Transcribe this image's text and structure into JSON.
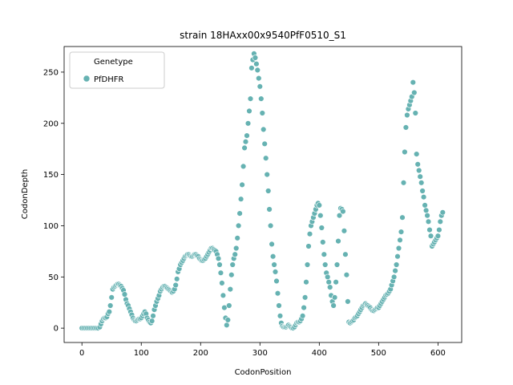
{
  "chart_data": {
    "type": "scatter",
    "title": "strain 18HAxx00x9540PfF0510_S1",
    "xlabel": "CodonPosition",
    "ylabel": "CodonDepth",
    "xlim": [
      -30,
      640
    ],
    "ylim": [
      -14,
      275
    ],
    "xticks": [
      0,
      100,
      200,
      300,
      400,
      500,
      600
    ],
    "yticks": [
      0,
      50,
      100,
      150,
      200,
      250
    ],
    "grid": false,
    "legend": {
      "title": "Genetype",
      "placement": "top-left",
      "entries": [
        "PfDHFR"
      ]
    },
    "series": [
      {
        "name": "PfDHFR",
        "color": "#66b2b2",
        "points": [
          [
            0,
            0
          ],
          [
            3,
            0
          ],
          [
            6,
            0
          ],
          [
            9,
            0
          ],
          [
            12,
            0
          ],
          [
            15,
            0
          ],
          [
            18,
            0
          ],
          [
            21,
            0
          ],
          [
            24,
            0
          ],
          [
            27,
            0
          ],
          [
            30,
            1
          ],
          [
            32,
            4
          ],
          [
            34,
            7
          ],
          [
            36,
            9
          ],
          [
            38,
            10
          ],
          [
            40,
            10
          ],
          [
            42,
            11
          ],
          [
            44,
            14
          ],
          [
            46,
            16
          ],
          [
            48,
            22
          ],
          [
            50,
            30
          ],
          [
            52,
            38
          ],
          [
            54,
            40
          ],
          [
            56,
            41
          ],
          [
            58,
            42
          ],
          [
            60,
            43
          ],
          [
            62,
            43
          ],
          [
            64,
            42
          ],
          [
            66,
            41
          ],
          [
            68,
            39
          ],
          [
            70,
            37
          ],
          [
            72,
            33
          ],
          [
            74,
            28
          ],
          [
            76,
            24
          ],
          [
            78,
            22
          ],
          [
            80,
            19
          ],
          [
            82,
            16
          ],
          [
            84,
            13
          ],
          [
            86,
            10
          ],
          [
            88,
            8
          ],
          [
            90,
            7
          ],
          [
            92,
            7
          ],
          [
            94,
            8
          ],
          [
            96,
            9
          ],
          [
            98,
            9
          ],
          [
            100,
            10
          ],
          [
            102,
            12
          ],
          [
            104,
            14
          ],
          [
            106,
            16
          ],
          [
            108,
            14
          ],
          [
            110,
            10
          ],
          [
            112,
            8
          ],
          [
            114,
            6
          ],
          [
            116,
            5
          ],
          [
            118,
            7
          ],
          [
            120,
            12
          ],
          [
            122,
            18
          ],
          [
            124,
            22
          ],
          [
            126,
            26
          ],
          [
            128,
            29
          ],
          [
            130,
            32
          ],
          [
            132,
            36
          ],
          [
            134,
            38
          ],
          [
            136,
            40
          ],
          [
            138,
            41
          ],
          [
            140,
            41
          ],
          [
            142,
            40
          ],
          [
            144,
            39
          ],
          [
            146,
            38
          ],
          [
            148,
            37
          ],
          [
            150,
            36
          ],
          [
            152,
            35
          ],
          [
            154,
            36
          ],
          [
            156,
            38
          ],
          [
            158,
            42
          ],
          [
            160,
            48
          ],
          [
            162,
            55
          ],
          [
            164,
            58
          ],
          [
            166,
            62
          ],
          [
            168,
            64
          ],
          [
            170,
            66
          ],
          [
            172,
            68
          ],
          [
            174,
            70
          ],
          [
            176,
            71
          ],
          [
            178,
            72
          ],
          [
            180,
            72
          ],
          [
            182,
            71
          ],
          [
            184,
            70
          ],
          [
            186,
            70
          ],
          [
            188,
            71
          ],
          [
            190,
            72
          ],
          [
            192,
            72
          ],
          [
            194,
            71
          ],
          [
            196,
            70
          ],
          [
            198,
            68
          ],
          [
            200,
            67
          ],
          [
            202,
            66
          ],
          [
            204,
            66
          ],
          [
            206,
            67
          ],
          [
            208,
            68
          ],
          [
            210,
            70
          ],
          [
            212,
            72
          ],
          [
            214,
            74
          ],
          [
            216,
            76
          ],
          [
            218,
            78
          ],
          [
            220,
            78
          ],
          [
            222,
            77
          ],
          [
            224,
            76
          ],
          [
            226,
            75
          ],
          [
            228,
            72
          ],
          [
            230,
            68
          ],
          [
            232,
            62
          ],
          [
            234,
            54
          ],
          [
            236,
            44
          ],
          [
            238,
            32
          ],
          [
            240,
            20
          ],
          [
            242,
            10
          ],
          [
            244,
            3
          ],
          [
            246,
            8
          ],
          [
            248,
            22
          ],
          [
            250,
            38
          ],
          [
            252,
            52
          ],
          [
            254,
            62
          ],
          [
            256,
            68
          ],
          [
            258,
            72
          ],
          [
            260,
            78
          ],
          [
            262,
            88
          ],
          [
            264,
            100
          ],
          [
            266,
            112
          ],
          [
            268,
            126
          ],
          [
            270,
            140
          ],
          [
            272,
            158
          ],
          [
            274,
            176
          ],
          [
            276,
            182
          ],
          [
            278,
            188
          ],
          [
            280,
            200
          ],
          [
            282,
            212
          ],
          [
            284,
            224
          ],
          [
            286,
            254
          ],
          [
            288,
            262
          ],
          [
            290,
            268
          ],
          [
            292,
            264
          ],
          [
            294,
            258
          ],
          [
            296,
            252
          ],
          [
            298,
            244
          ],
          [
            300,
            236
          ],
          [
            302,
            224
          ],
          [
            304,
            210
          ],
          [
            306,
            194
          ],
          [
            308,
            180
          ],
          [
            310,
            166
          ],
          [
            312,
            150
          ],
          [
            314,
            134
          ],
          [
            316,
            116
          ],
          [
            318,
            100
          ],
          [
            320,
            82
          ],
          [
            322,
            70
          ],
          [
            324,
            62
          ],
          [
            326,
            55
          ],
          [
            328,
            46
          ],
          [
            330,
            34
          ],
          [
            332,
            22
          ],
          [
            334,
            12
          ],
          [
            336,
            5
          ],
          [
            338,
            2
          ],
          [
            340,
            1
          ],
          [
            342,
            1
          ],
          [
            344,
            1
          ],
          [
            346,
            2
          ],
          [
            348,
            3
          ],
          [
            350,
            2
          ],
          [
            352,
            1
          ],
          [
            354,
            0
          ],
          [
            356,
            0
          ],
          [
            358,
            1
          ],
          [
            360,
            3
          ],
          [
            362,
            5
          ],
          [
            364,
            6
          ],
          [
            366,
            6
          ],
          [
            368,
            7
          ],
          [
            370,
            9
          ],
          [
            372,
            12
          ],
          [
            374,
            20
          ],
          [
            376,
            30
          ],
          [
            378,
            45
          ],
          [
            380,
            62
          ],
          [
            382,
            80
          ],
          [
            384,
            92
          ],
          [
            386,
            100
          ],
          [
            388,
            104
          ],
          [
            390,
            108
          ],
          [
            392,
            112
          ],
          [
            394,
            116
          ],
          [
            396,
            120
          ],
          [
            398,
            122
          ],
          [
            400,
            120
          ],
          [
            402,
            110
          ],
          [
            404,
            98
          ],
          [
            406,
            84
          ],
          [
            408,
            72
          ],
          [
            410,
            62
          ],
          [
            412,
            54
          ],
          [
            414,
            50
          ],
          [
            416,
            45
          ],
          [
            418,
            40
          ],
          [
            420,
            32
          ],
          [
            422,
            26
          ],
          [
            424,
            22
          ],
          [
            426,
            30
          ],
          [
            428,
            45
          ],
          [
            430,
            62
          ],
          [
            432,
            85
          ],
          [
            434,
            110
          ],
          [
            436,
            117
          ],
          [
            438,
            116
          ],
          [
            440,
            114
          ],
          [
            442,
            95
          ],
          [
            444,
            72
          ],
          [
            446,
            52
          ],
          [
            448,
            26
          ],
          [
            450,
            6
          ],
          [
            452,
            5
          ],
          [
            454,
            6
          ],
          [
            456,
            7
          ],
          [
            458,
            8
          ],
          [
            460,
            10
          ],
          [
            462,
            11
          ],
          [
            464,
            12
          ],
          [
            466,
            14
          ],
          [
            468,
            16
          ],
          [
            470,
            18
          ],
          [
            472,
            20
          ],
          [
            474,
            22
          ],
          [
            476,
            23
          ],
          [
            478,
            24
          ],
          [
            480,
            23
          ],
          [
            482,
            22
          ],
          [
            484,
            21
          ],
          [
            486,
            20
          ],
          [
            488,
            18
          ],
          [
            490,
            17
          ],
          [
            492,
            17
          ],
          [
            494,
            18
          ],
          [
            496,
            19
          ],
          [
            498,
            20
          ],
          [
            500,
            20
          ],
          [
            502,
            22
          ],
          [
            504,
            24
          ],
          [
            506,
            26
          ],
          [
            508,
            28
          ],
          [
            510,
            30
          ],
          [
            512,
            32
          ],
          [
            514,
            33
          ],
          [
            516,
            34
          ],
          [
            518,
            36
          ],
          [
            520,
            38
          ],
          [
            522,
            42
          ],
          [
            524,
            46
          ],
          [
            526,
            50
          ],
          [
            528,
            56
          ],
          [
            530,
            62
          ],
          [
            532,
            70
          ],
          [
            534,
            78
          ],
          [
            536,
            86
          ],
          [
            538,
            94
          ],
          [
            540,
            108
          ],
          [
            542,
            142
          ],
          [
            544,
            172
          ],
          [
            546,
            196
          ],
          [
            548,
            208
          ],
          [
            550,
            214
          ],
          [
            552,
            218
          ],
          [
            554,
            222
          ],
          [
            556,
            226
          ],
          [
            558,
            240
          ],
          [
            560,
            230
          ],
          [
            562,
            210
          ],
          [
            564,
            170
          ],
          [
            566,
            160
          ],
          [
            568,
            154
          ],
          [
            570,
            148
          ],
          [
            572,
            142
          ],
          [
            574,
            134
          ],
          [
            576,
            128
          ],
          [
            578,
            120
          ],
          [
            580,
            115
          ],
          [
            582,
            110
          ],
          [
            584,
            104
          ],
          [
            586,
            96
          ],
          [
            588,
            90
          ],
          [
            590,
            80
          ],
          [
            592,
            82
          ],
          [
            594,
            84
          ],
          [
            596,
            86
          ],
          [
            598,
            88
          ],
          [
            600,
            90
          ],
          [
            602,
            96
          ],
          [
            604,
            104
          ],
          [
            606,
            110
          ],
          [
            608,
            113
          ]
        ]
      }
    ]
  }
}
